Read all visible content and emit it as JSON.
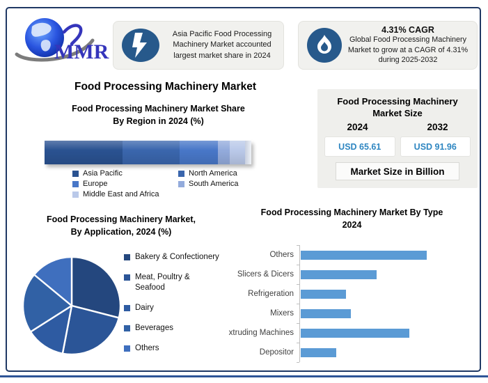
{
  "colors": {
    "frame_border": "#1f3864",
    "bottom_bar": "#2e5597",
    "icon_blue": "#27598b",
    "usd_value": "#2e86c1",
    "callout_bg": "#f1f1ee",
    "panel_bg": "#efefec",
    "type_bar_blue": "#5b9bd5"
  },
  "logo": {
    "brand": "MMR"
  },
  "callouts": [
    {
      "icon": "lightning-icon",
      "text": "Asia Pacific Food Processing Machinery Market accounted largest market share in 2024"
    },
    {
      "icon": "flame-icon",
      "title": "4.31% CAGR",
      "body": "Global Food Processing Machinery Market to grow at a CAGR of 4.31% during 2025-2032"
    }
  ],
  "main_title": "Food Processing Machinery Market",
  "market_size_panel": {
    "title": "Food Processing Machinery Market Size",
    "title_lines": [
      "Food Processing Machinery",
      "Market Size"
    ],
    "years": [
      "2024",
      "2032"
    ],
    "values": [
      "USD 65.61",
      "USD 91.96"
    ],
    "unit_label": "Market Size in Billion"
  },
  "chart_data": [
    {
      "type": "bar",
      "subtype": "stacked-horizontal-single-bar",
      "title": "Food Processing Machinery Market Share By Region in 2024 (%)",
      "title_lines": [
        "Food Processing Machinery Market Share",
        "By Region in 2024 (%)"
      ],
      "categories": [
        "Asia Pacific",
        "North America",
        "Europe",
        "South America",
        "Middle East and Africa"
      ],
      "values": [
        39,
        28.5,
        19,
        6,
        7.5
      ],
      "colors": [
        "#2a5291",
        "#3a66ad",
        "#4877c8",
        "#93abdc",
        "#bac9e9"
      ],
      "legend_position": "bottom",
      "legend_columns": 2
    },
    {
      "type": "pie",
      "title": "Food Processing Machinery Market, By Application, 2024 (%)",
      "title_lines": [
        "Food Processing Machinery Market,",
        "By Application, 2024 (%)"
      ],
      "labels": [
        "Bakery & Confectionery",
        "Meat, Poultry & Seafood",
        "Dairy",
        "Beverages",
        "Others"
      ],
      "values": [
        29,
        24,
        13,
        20,
        14
      ],
      "colors": [
        "#24477e",
        "#2b5597",
        "#2e5ba2",
        "#3161a5",
        "#3f6fbe"
      ],
      "legend_position": "right",
      "legend_items": [
        {
          "lines": [
            "Bakery & Confectionery"
          ]
        },
        {
          "lines": [
            "Meat, Poultry &",
            "Seafood"
          ]
        },
        {
          "lines": [
            "Dairy"
          ]
        },
        {
          "lines": [
            "Beverages"
          ]
        },
        {
          "lines": [
            "Others"
          ]
        }
      ]
    },
    {
      "type": "bar",
      "subtype": "horizontal",
      "title": "Food Processing Machinery Market By Type 2024",
      "title_lines": [
        "Food Processing Machinery Market By Type",
        "2024"
      ],
      "categories": [
        "Others",
        "Slicers & Dicers",
        "Refrigeration",
        "Mixers",
        "xtruding Machines",
        "Depositor"
      ],
      "values": [
        100,
        60,
        36,
        40,
        86,
        28
      ],
      "xlim": [
        0,
        100
      ],
      "bar_color": "#5b9bd5",
      "grid": false,
      "legend_position": "none"
    }
  ]
}
